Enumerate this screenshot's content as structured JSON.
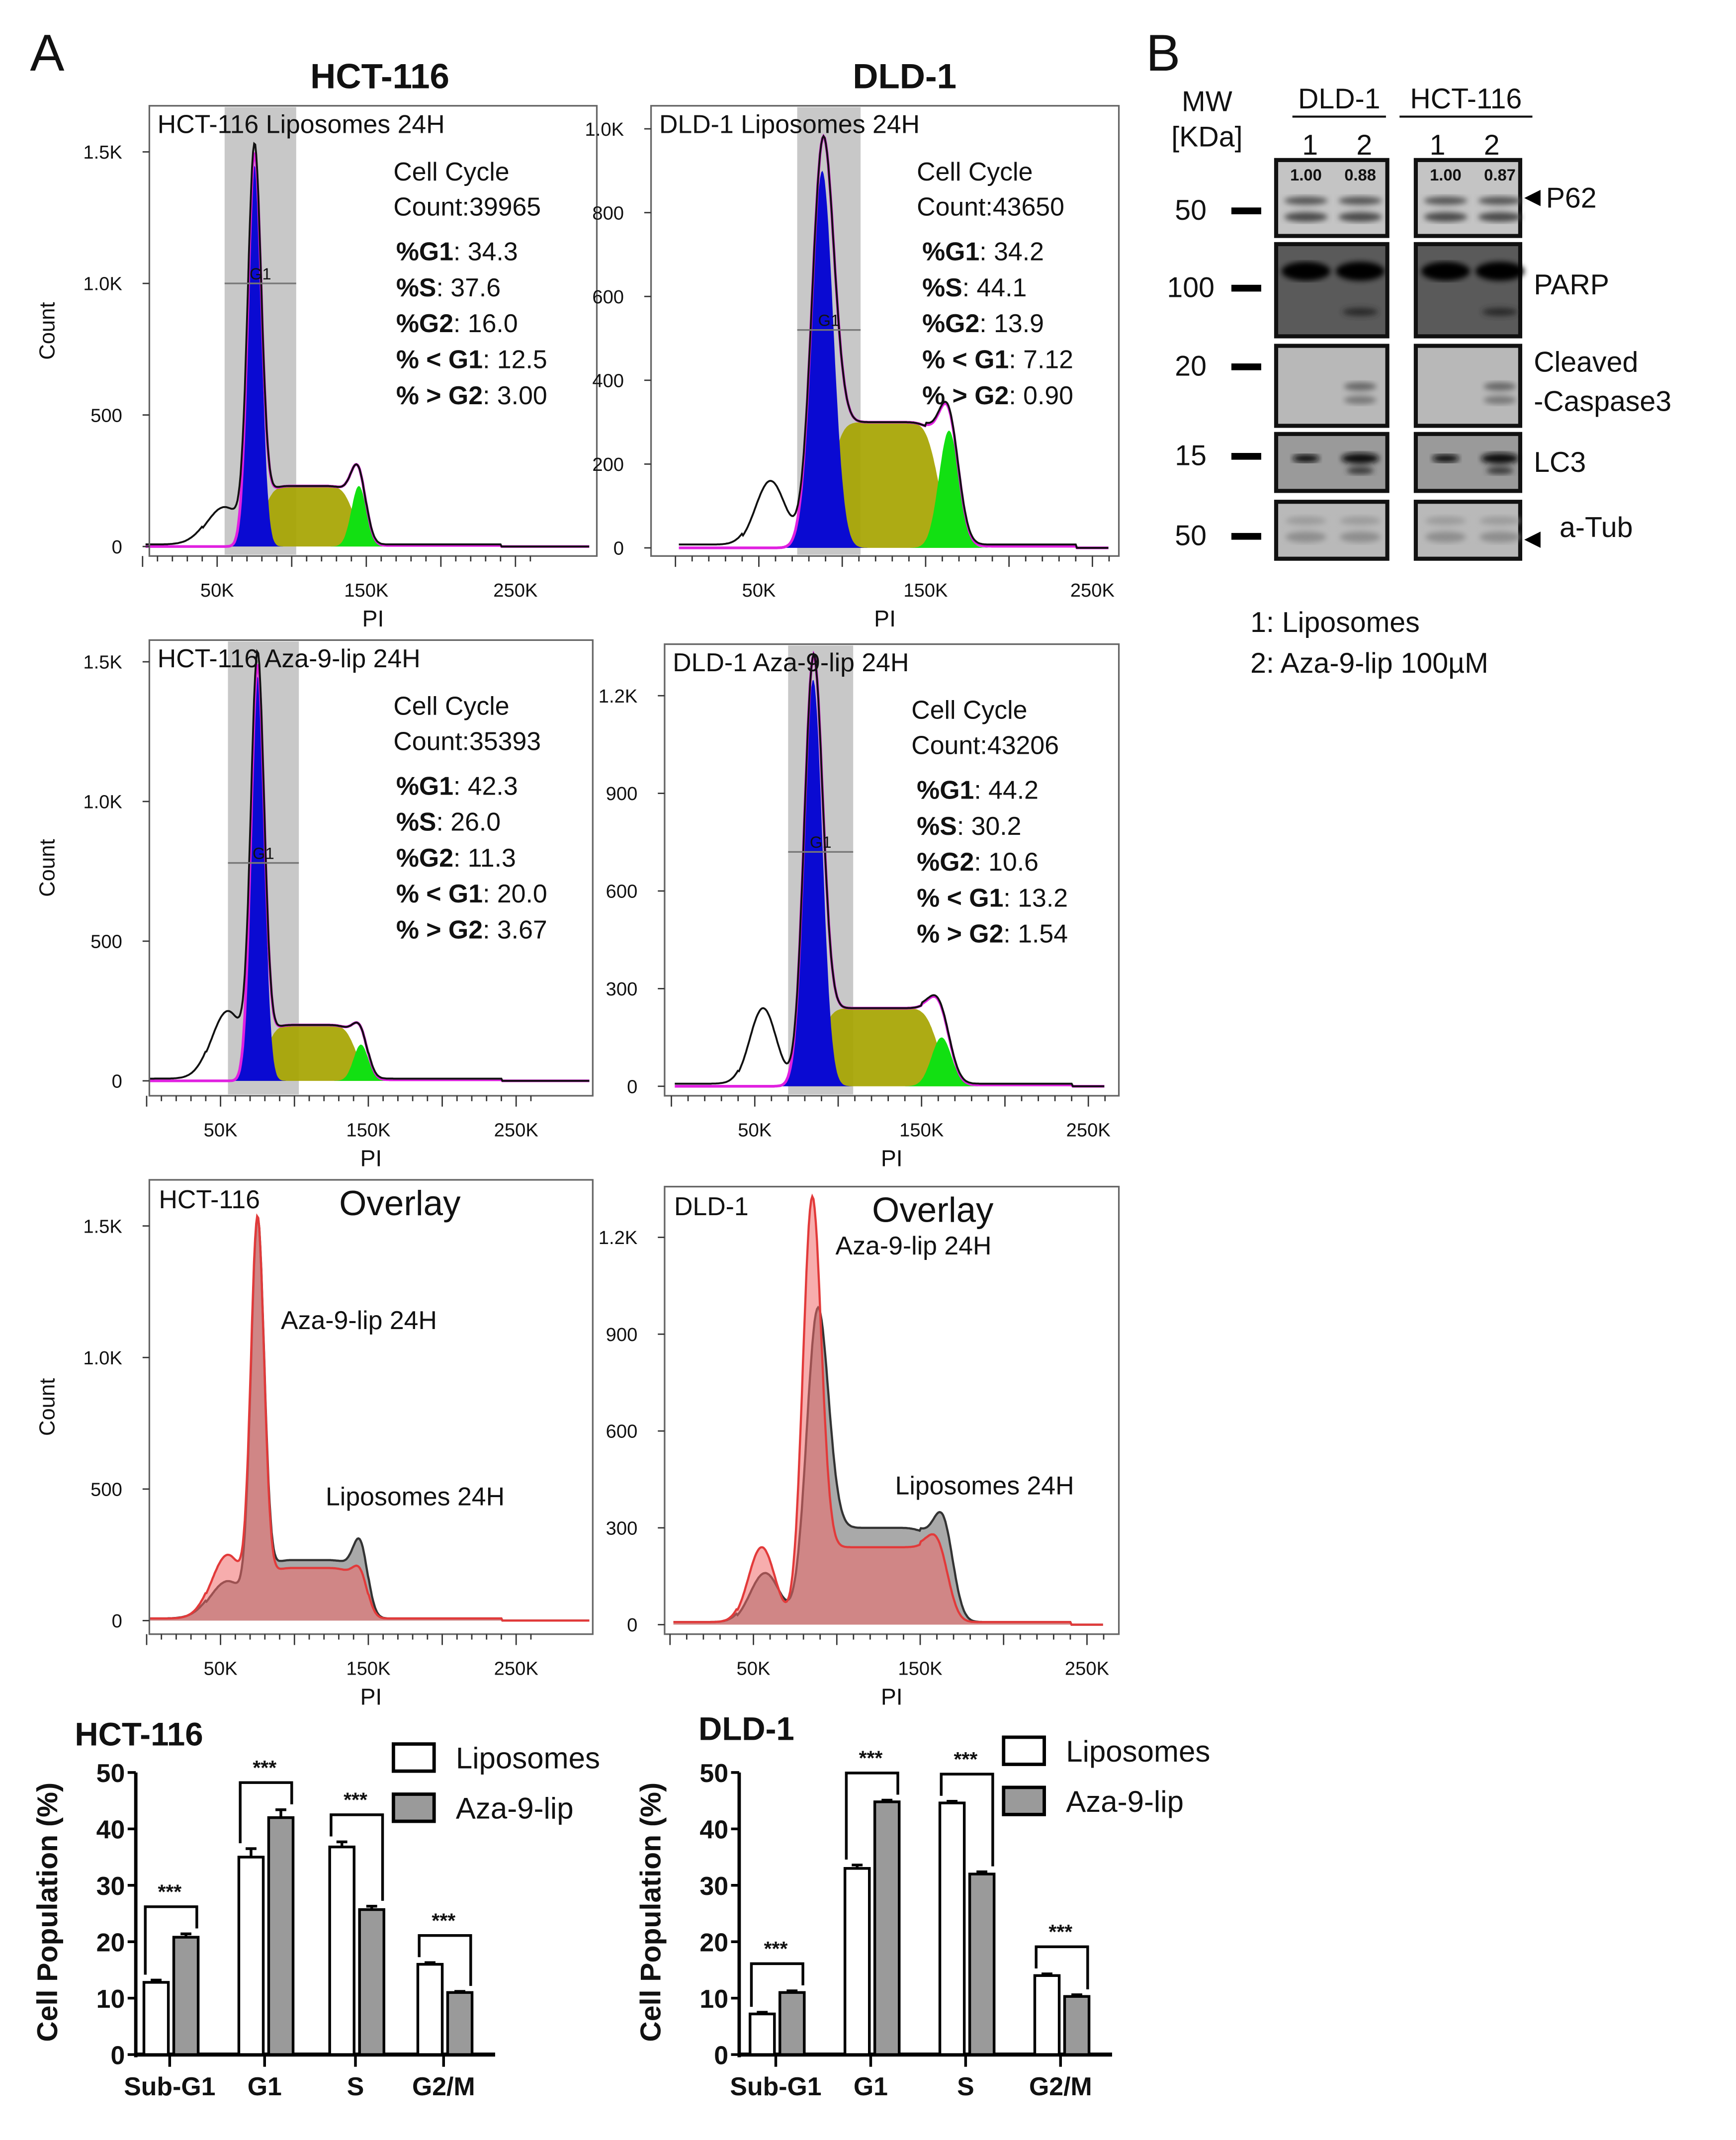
{
  "panel_labels": {
    "a": "A",
    "b": "B"
  },
  "columns": {
    "hct": "HCT-116",
    "dld": "DLD-1"
  },
  "chart_data": [
    {
      "type": "area",
      "id": "hct_lip",
      "title": "HCT-116 Liposomes 24H",
      "xlabel": "PI",
      "ylabel": "Count",
      "xlim": [
        0,
        300
      ],
      "ylim": [
        0,
        1600
      ],
      "xticks": [
        "50K",
        "150K",
        "250K"
      ],
      "xtick_values": [
        50,
        150,
        250
      ],
      "yticks": [
        "0",
        "500",
        "1.0K",
        "1.5K"
      ],
      "ytick_values": [
        0,
        500,
        1000,
        1500
      ],
      "gate": {
        "label": "G1",
        "range": [
          55,
          103
        ],
        "y": 1000
      },
      "stats_header": "Cell Cycle",
      "count": "Count:39965",
      "stats": [
        {
          "k": "%G1",
          "v": ": 34.3"
        },
        {
          "k": "%S",
          "v": ": 37.6"
        },
        {
          "k": "%G2",
          "v": ": 16.0"
        },
        {
          "k": "% < G1",
          "v": ": 12.5"
        },
        {
          "k": "% > G2",
          "v": ": 3.00"
        }
      ],
      "model": {
        "subg1": [
          55,
          12,
          150
        ],
        "g1": [
          75,
          4.5,
          1450
        ],
        "s": [
          80,
          142,
          230
        ],
        "g2": [
          145,
          5,
          230
        ]
      }
    },
    {
      "type": "area",
      "id": "dld_lip",
      "title": "DLD-1 Liposomes 24H",
      "xlabel": "PI",
      "ylabel": "",
      "xlim": [
        0,
        260
      ],
      "ylim": [
        0,
        1050
      ],
      "xticks": [
        "50K",
        "150K",
        "250K"
      ],
      "xtick_values": [
        50,
        150,
        250
      ],
      "yticks": [
        "0",
        "200",
        "400",
        "600",
        "800",
        "1.0K"
      ],
      "ytick_values": [
        0,
        200,
        400,
        600,
        800,
        1000
      ],
      "gate": {
        "label": "G1",
        "range": [
          73,
          111
        ],
        "y": 520
      },
      "stats_header": "Cell Cycle",
      "count": "Count:43650",
      "stats": [
        {
          "k": "%G1",
          "v": ": 34.2"
        },
        {
          "k": "%S",
          "v": ": 44.1"
        },
        {
          "k": "%G2",
          "v": ": 13.9"
        },
        {
          "k": "% < G1",
          "v": ": 7.12"
        },
        {
          "k": "% > G2",
          "v": ": 0.90"
        }
      ],
      "model": {
        "subg1": [
          57,
          9,
          160
        ],
        "g1": [
          88,
          6.5,
          900
        ],
        "s": [
          92,
          158,
          300
        ],
        "g2": [
          164,
          6,
          280
        ]
      }
    },
    {
      "type": "area",
      "id": "hct_aza",
      "title": "HCT-116 Aza-9-lip 24H",
      "xlabel": "PI",
      "ylabel": "Count",
      "xlim": [
        0,
        300
      ],
      "ylim": [
        0,
        1600
      ],
      "xticks": [
        "50K",
        "150K",
        "250K"
      ],
      "xtick_values": [
        50,
        150,
        250
      ],
      "yticks": [
        "0",
        "500",
        "1.0K",
        "1.5K"
      ],
      "ytick_values": [
        0,
        500,
        1000,
        1500
      ],
      "gate": {
        "label": "G1",
        "range": [
          55,
          103
        ],
        "y": 780
      },
      "stats_header": "Cell Cycle",
      "count": "Count:35393",
      "stats": [
        {
          "k": "%G1",
          "v": ": 42.3"
        },
        {
          "k": "%S",
          "v": ": 26.0"
        },
        {
          "k": "%G2",
          "v": ": 11.3"
        },
        {
          "k": "% < G1",
          "v": ": 20.0"
        },
        {
          "k": "% > G2",
          "v": ": 3.67"
        }
      ],
      "model": {
        "subg1": [
          55,
          11,
          250
        ],
        "g1": [
          75,
          4.5,
          1450
        ],
        "s": [
          80,
          142,
          200
        ],
        "g2": [
          145,
          5,
          130
        ]
      }
    },
    {
      "type": "area",
      "id": "dld_aza",
      "title": "DLD-1 Aza-9-lip 24H",
      "xlabel": "PI",
      "ylabel": "",
      "xlim": [
        0,
        260
      ],
      "ylim": [
        0,
        1350
      ],
      "xticks": [
        "50K",
        "150K",
        "250K"
      ],
      "xtick_values": [
        50,
        150,
        250
      ],
      "yticks": [
        "0",
        "300",
        "600",
        "900",
        "1.2K"
      ],
      "ytick_values": [
        0,
        300,
        600,
        900,
        1200
      ],
      "gate": {
        "label": "G1",
        "range": [
          70,
          109
        ],
        "y": 720
      },
      "stats_header": "Cell Cycle",
      "count": "Count:43206",
      "stats": [
        {
          "k": "%G1",
          "v": ": 44.2"
        },
        {
          "k": "%S",
          "v": ": 30.2"
        },
        {
          "k": "%G2",
          "v": ": 10.6"
        },
        {
          "k": "% < G1",
          "v": ": 13.2"
        },
        {
          "k": "% > G2",
          "v": ": 1.54"
        }
      ],
      "model": {
        "subg1": [
          55,
          8,
          240
        ],
        "g1": [
          85,
          5.5,
          1250
        ],
        "s": [
          88,
          160,
          240
        ],
        "g2": [
          162,
          6,
          150
        ]
      }
    },
    {
      "type": "area",
      "id": "hct_overlay",
      "title": "HCT-116",
      "subtitle": "Overlay",
      "xlabel": "PI",
      "ylabel": "Count",
      "xlim": [
        0,
        300
      ],
      "ylim": [
        0,
        1600
      ],
      "xticks": [
        "50K",
        "150K",
        "250K"
      ],
      "xtick_values": [
        50,
        150,
        250
      ],
      "yticks": [
        "0",
        "500",
        "1.0K",
        "1.5K"
      ],
      "ytick_values": [
        0,
        500,
        1000,
        1500
      ],
      "series": [
        {
          "name": "Liposomes 24H",
          "source": "hct_lip",
          "color": "#8c8c8c"
        },
        {
          "name": "Aza-9-lip 24H",
          "source": "hct_aza",
          "color": "#f06a6a"
        }
      ]
    },
    {
      "type": "area",
      "id": "dld_overlay",
      "title": "DLD-1",
      "subtitle": "Overlay",
      "xlabel": "PI",
      "ylabel": "",
      "xlim": [
        0,
        260
      ],
      "ylim": [
        0,
        1350
      ],
      "xticks": [
        "50K",
        "150K",
        "250K"
      ],
      "xtick_values": [
        50,
        150,
        250
      ],
      "yticks": [
        "0",
        "300",
        "600",
        "900",
        "1.2K"
      ],
      "ytick_values": [
        0,
        300,
        600,
        900,
        1200
      ],
      "series": [
        {
          "name": "Liposomes 24H",
          "source": "dld_lip",
          "color": "#8c8c8c"
        },
        {
          "name": "Aza-9-lip 24H",
          "source": "dld_aza",
          "color": "#f06a6a"
        }
      ]
    },
    {
      "type": "bar",
      "id": "hct_bar",
      "title": "HCT-116",
      "ylabel": "Cell Population (%)",
      "categories": [
        "Sub-G1",
        "G1",
        "S",
        "G2/M"
      ],
      "ylim": [
        0,
        50
      ],
      "yticks": [
        "0",
        "10",
        "20",
        "30",
        "40",
        "50"
      ],
      "ytick_values": [
        0,
        10,
        20,
        30,
        40,
        50
      ],
      "significance": "***",
      "series": [
        {
          "name": "Liposomes",
          "color": "#ffffff",
          "values": [
            12.8,
            35.0,
            36.8,
            16.0
          ],
          "errors": [
            0.4,
            1.5,
            0.9,
            0.3
          ]
        },
        {
          "name": "Aza-9-lip",
          "color": "#9a9a9a",
          "values": [
            20.8,
            42.0,
            25.7,
            11.0
          ],
          "errors": [
            0.6,
            1.4,
            0.6,
            0.2
          ]
        }
      ]
    },
    {
      "type": "bar",
      "id": "dld_bar",
      "title": "DLD-1",
      "ylabel": "Cell Population (%)",
      "categories": [
        "Sub-G1",
        "G1",
        "S",
        "G2/M"
      ],
      "ylim": [
        0,
        50
      ],
      "yticks": [
        "0",
        "10",
        "20",
        "30",
        "40",
        "50"
      ],
      "ytick_values": [
        0,
        10,
        20,
        30,
        40,
        50
      ],
      "significance": "***",
      "series": [
        {
          "name": "Liposomes",
          "color": "#ffffff",
          "values": [
            7.2,
            33.0,
            44.6,
            14.0
          ],
          "errors": [
            0.3,
            0.6,
            0.3,
            0.3
          ]
        },
        {
          "name": "Aza-9-lip",
          "color": "#9a9a9a",
          "values": [
            11.0,
            44.8,
            32.0,
            10.3
          ],
          "errors": [
            0.3,
            0.3,
            0.4,
            0.3
          ]
        }
      ]
    }
  ],
  "western": {
    "mw_header": [
      "MW",
      "[KDa]"
    ],
    "groups": [
      "DLD-1",
      "HCT-116"
    ],
    "lanes": [
      "1",
      "2",
      "1",
      "2"
    ],
    "rows": [
      {
        "mw": "50",
        "label": "P62",
        "arrow": "left",
        "quant": [
          "1.00",
          "0.88",
          "1.00",
          "0.87"
        ]
      },
      {
        "mw": "100",
        "label": "PARP"
      },
      {
        "mw": "20",
        "label": "Cleaved",
        "label2": "-Caspase3"
      },
      {
        "mw": "15",
        "label": "LC3"
      },
      {
        "mw": "50",
        "label": "a-Tub",
        "arrow": "left-low"
      }
    ],
    "legend": [
      "1: Liposomes",
      "2: Aza-9-lip  100µM"
    ],
    "quant_color": "#ff2020"
  },
  "colors": {
    "g1": "#0a0ad2",
    "s": "#a6a400",
    "g2": "#12e012",
    "model": "#e020e0",
    "gate": "#c8c8c8"
  }
}
